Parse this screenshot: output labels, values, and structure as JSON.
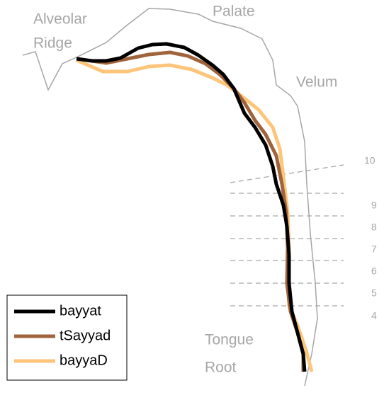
{
  "regions": {
    "alveolar_ridge": [
      "Alveolar",
      "Ridge"
    ],
    "palate": "Palate",
    "velum": "Velum",
    "tongue_root": [
      "Tongue",
      "Root"
    ]
  },
  "gridlines": [
    "10",
    "9",
    "8",
    "7",
    "6",
    "5",
    "4"
  ],
  "legend": [
    {
      "name": "bayyat",
      "color": "#000000"
    },
    {
      "name": "tSayyad",
      "color": "#a0643c"
    },
    {
      "name": "bayyaD",
      "color": "#fcc57a"
    }
  ]
}
